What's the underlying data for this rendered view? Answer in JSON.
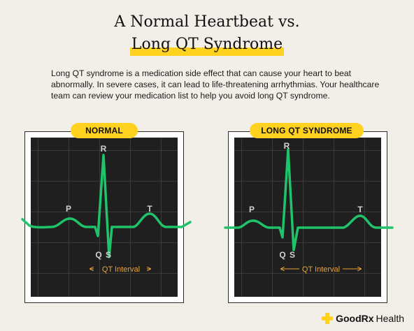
{
  "title": {
    "line1": "A Normal Heartbeat vs.",
    "line2": "Long QT Syndrome"
  },
  "description": "Long QT syndrome is a medication side effect that can cause your heart to beat abnormally. In severe cases, it can lead to life-threatening arrhythmias. Your healthcare team can review your medication list to help you avoid long QT syndrome.",
  "panels": [
    {
      "badge": "NORMAL",
      "labels": {
        "p": "P",
        "q": "Q",
        "r": "R",
        "s": "S",
        "t": "T"
      },
      "interval_label": "QT Interval"
    },
    {
      "badge": "LONG QT SYNDROME",
      "labels": {
        "p": "P",
        "q": "Q",
        "r": "R",
        "s": "S",
        "t": "T"
      },
      "interval_label": "QT Interval"
    }
  ],
  "footer": {
    "brand": "GoodRx",
    "suffix": "Health"
  },
  "colors": {
    "highlight": "#ffd21f",
    "wave": "#1fc46a",
    "interval": "#e8a23a",
    "background": "#f2efe9",
    "brand_icon": "#ffd21f"
  },
  "icons": {
    "footer_logo": "plus-icon"
  }
}
